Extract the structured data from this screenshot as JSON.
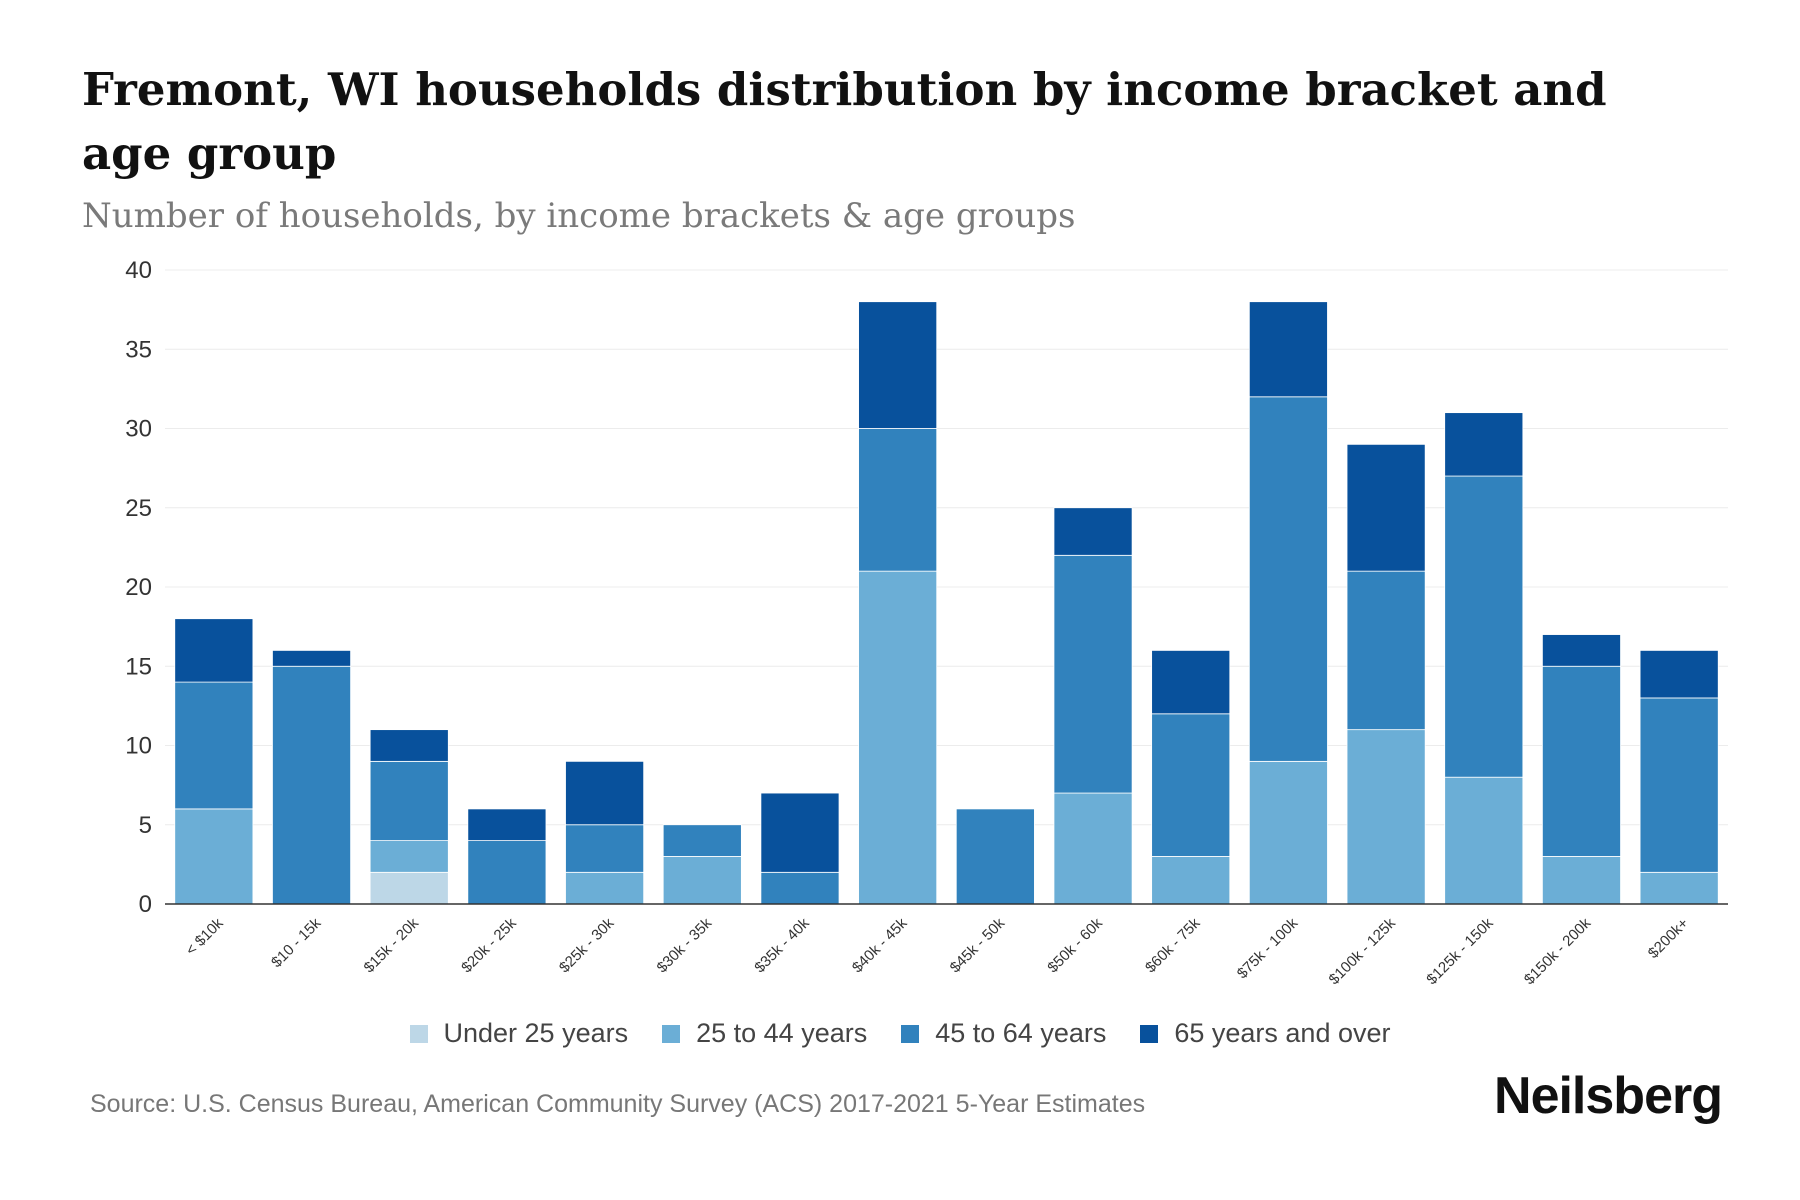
{
  "title": "Fremont, WI households distribution by income bracket and age group",
  "subtitle": "Number of households, by income brackets & age groups",
  "source": "Source: U.S. Census Bureau, American Community Survey (ACS) 2017-2021 5-Year Estimates",
  "brand": "Neilsberg",
  "chart_data": {
    "type": "bar",
    "stacked": true,
    "title": "Fremont, WI households distribution by income bracket and age group",
    "subtitle": "Number of households, by income brackets & age groups",
    "xlabel": "",
    "ylabel": "",
    "ylim": [
      0,
      40
    ],
    "yticks": [
      0,
      5,
      10,
      15,
      20,
      25,
      30,
      35,
      40
    ],
    "grid": true,
    "legend_position": "bottom",
    "categories": [
      "< $10k",
      "$10 - 15k",
      "$15k - 20k",
      "$20k - 25k",
      "$25k - 30k",
      "$30k - 35k",
      "$35k - 40k",
      "$40k - 45k",
      "$45k - 50k",
      "$50k - 60k",
      "$60k - 75k",
      "$75k - 100k",
      "$100k - 125k",
      "$125k - 150k",
      "$150k - 200k",
      "$200k+"
    ],
    "series": [
      {
        "name": "Under 25 years",
        "color": "#bdd7e7",
        "values": [
          0,
          0,
          2,
          0,
          0,
          0,
          0,
          0,
          0,
          0,
          0,
          0,
          0,
          0,
          0,
          0
        ]
      },
      {
        "name": "25 to 44 years",
        "color": "#6baed6",
        "values": [
          6,
          0,
          2,
          0,
          2,
          3,
          0,
          21,
          0,
          7,
          3,
          9,
          11,
          8,
          3,
          2
        ]
      },
      {
        "name": "45 to 64 years",
        "color": "#3182bd",
        "values": [
          8,
          15,
          5,
          4,
          3,
          2,
          2,
          9,
          6,
          15,
          9,
          23,
          10,
          19,
          12,
          11
        ]
      },
      {
        "name": "65 years and over",
        "color": "#08519c",
        "values": [
          4,
          1,
          2,
          2,
          4,
          0,
          5,
          8,
          0,
          3,
          4,
          6,
          8,
          4,
          2,
          3
        ]
      }
    ]
  }
}
